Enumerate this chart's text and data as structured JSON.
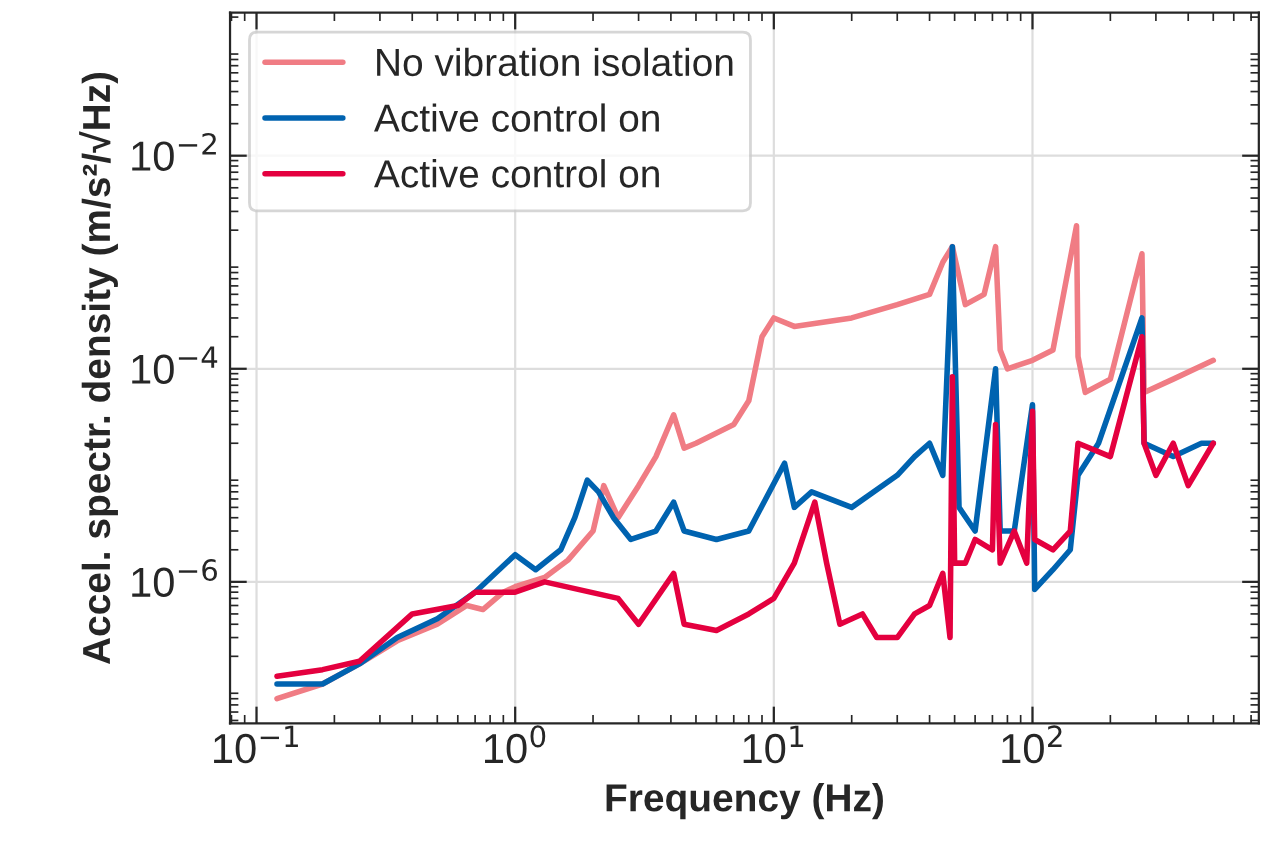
{
  "chart_data": {
    "type": "line",
    "xlabel": "Frequency (Hz)",
    "ylabel": "Accel. spectr. density (m/s²/√Hz)",
    "log": "xy",
    "grid": true,
    "legend": "top left",
    "line_style": "solid",
    "xlim": [
      0.079,
      750
    ],
    "ylim": [
      4.7e-08,
      0.22
    ],
    "xticks": [
      {
        "value": 0.1,
        "label": "10$^{−1}$"
      },
      {
        "value": 1,
        "label": "10$^{0}$"
      },
      {
        "value": 10,
        "label": "10$^{1}$"
      },
      {
        "value": 100,
        "label": "10$^{2}$"
      }
    ],
    "yticks": [
      {
        "value": 1e-06,
        "label": "10$^{−6}$"
      },
      {
        "value": 0.0001,
        "label": "10$^{−4}$"
      },
      {
        "value": 0.01,
        "label": "10$^{−2}$"
      }
    ],
    "series": [
      {
        "name": "No vibration isolation",
        "color": "#f07c84",
        "x": [
          0.12,
          0.18,
          0.25,
          0.35,
          0.5,
          0.65,
          0.75,
          0.9,
          1.0,
          1.3,
          1.6,
          2.0,
          2.2,
          2.5,
          3.0,
          3.5,
          4.1,
          4.5,
          5,
          7,
          8,
          9,
          10,
          12,
          20,
          30,
          40,
          45,
          49,
          55,
          65,
          72,
          75,
          80,
          100,
          120,
          148,
          150,
          160,
          200,
          265,
          270,
          350,
          500
        ],
        "values": [
          8e-08,
          1.1e-07,
          1.7e-07,
          2.8e-07,
          4e-07,
          6e-07,
          5.5e-07,
          8e-07,
          9e-07,
          1.1e-06,
          1.6e-06,
          3e-06,
          8e-06,
          4e-06,
          8e-06,
          1.5e-05,
          3.7e-05,
          1.8e-05,
          2e-05,
          3e-05,
          5e-05,
          0.0002,
          0.0003,
          0.00025,
          0.0003,
          0.0004,
          0.0005,
          0.001,
          0.0014,
          0.0004,
          0.0005,
          0.0014,
          0.00015,
          0.0001,
          0.00012,
          0.00015,
          0.0022,
          0.00013,
          6e-05,
          8e-05,
          0.0012,
          6e-05,
          8e-05,
          0.00012
        ]
      },
      {
        "name": "Active control on",
        "color": "#0063b0",
        "x": [
          0.12,
          0.18,
          0.25,
          0.35,
          0.5,
          0.7,
          1.0,
          1.2,
          1.5,
          1.7,
          1.9,
          2.1,
          2.4,
          2.8,
          3.5,
          4.1,
          4.5,
          6,
          8,
          11,
          12,
          14,
          20,
          30,
          35,
          40,
          45,
          49,
          52,
          60,
          72,
          73,
          75,
          85,
          100,
          101,
          102,
          120,
          140,
          150,
          180,
          265,
          270,
          350,
          450,
          500
        ],
        "values": [
          1.1e-07,
          1.1e-07,
          1.7e-07,
          3e-07,
          4.5e-07,
          8e-07,
          1.8e-06,
          1.3e-06,
          2e-06,
          4e-06,
          9e-06,
          7e-06,
          4e-06,
          2.5e-06,
          3e-06,
          5.6e-06,
          3e-06,
          2.5e-06,
          3e-06,
          1.3e-05,
          5e-06,
          7e-06,
          5e-06,
          1e-05,
          1.5e-05,
          2e-05,
          1e-05,
          0.0014,
          5e-06,
          3e-06,
          0.0001,
          null,
          3e-06,
          3e-06,
          4.6e-05,
          null,
          8.5e-07,
          1.3e-06,
          2e-06,
          1e-05,
          2e-05,
          0.0003,
          2e-05,
          1.5e-05,
          2e-05,
          2e-05
        ]
      },
      {
        "name": "Active control on",
        "color": "#e4003f",
        "x": [
          0.12,
          0.18,
          0.25,
          0.4,
          0.6,
          0.7,
          1.0,
          1.3,
          2.5,
          3,
          4.1,
          4.5,
          6,
          8,
          10,
          12,
          14.4,
          16,
          18,
          22,
          25,
          30,
          35,
          40,
          45,
          48,
          49,
          50,
          55,
          60,
          70,
          72,
          75,
          85,
          95,
          100,
          102,
          120,
          140,
          150,
          200,
          265,
          270,
          300,
          350,
          400,
          500
        ],
        "values": [
          1.3e-07,
          1.5e-07,
          1.8e-07,
          5e-07,
          6e-07,
          8e-07,
          8e-07,
          1e-06,
          7e-07,
          4e-07,
          1.2e-06,
          4e-07,
          3.5e-07,
          5e-07,
          7e-07,
          1.5e-06,
          5.6e-06,
          1.5e-06,
          4e-07,
          5e-07,
          3e-07,
          3e-07,
          5e-07,
          6e-07,
          1.2e-06,
          3e-07,
          8.4e-05,
          1.5e-06,
          1.5e-06,
          2.5e-06,
          2e-06,
          3e-05,
          1.5e-06,
          3e-06,
          1.5e-06,
          4e-05,
          2.5e-06,
          2e-06,
          3e-06,
          2e-05,
          1.5e-05,
          0.0002,
          2e-05,
          1e-05,
          2e-05,
          8e-06,
          2e-05
        ]
      }
    ]
  }
}
